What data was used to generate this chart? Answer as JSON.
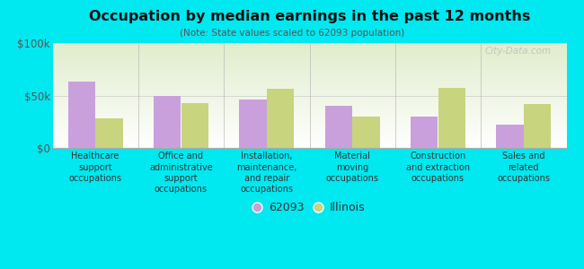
{
  "title": "Occupation by median earnings in the past 12 months",
  "subtitle": "(Note: State values scaled to 62093 population)",
  "categories": [
    "Healthcare\nsupport\noccupations",
    "Office and\nadministrative\nsupport\noccupations",
    "Installation,\nmaintenance,\nand repair\noccupations",
    "Material\nmoving\noccupations",
    "Construction\nand extraction\noccupations",
    "Sales and\nrelated\noccupations"
  ],
  "values_62093": [
    63000,
    50000,
    46000,
    40000,
    30000,
    22000
  ],
  "values_illinois": [
    28000,
    43000,
    56000,
    30000,
    57000,
    42000
  ],
  "color_62093": "#c9a0dc",
  "color_illinois": "#c8d47e",
  "background_color": "#00e8f0",
  "ylim": [
    0,
    100000
  ],
  "ytick_labels": [
    "$0",
    "$50k",
    "$100k"
  ],
  "ytick_values": [
    0,
    50000,
    100000
  ],
  "legend_label_62093": "62093",
  "legend_label_illinois": "Illinois",
  "watermark": "City-Data.com"
}
